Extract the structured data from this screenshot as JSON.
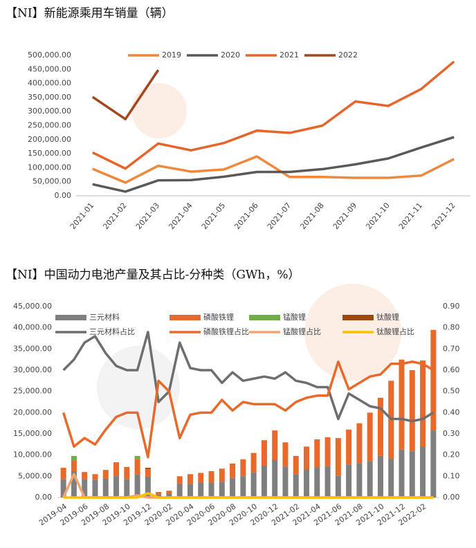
{
  "chart_data": [
    {
      "type": "line",
      "title": "【NI】新能源乘用车销量（辆）",
      "categories": [
        "2021-01",
        "2021-02",
        "2021-03",
        "2021-04",
        "2021-05",
        "2021-06",
        "2021-07",
        "2021-08",
        "2021-09",
        "2021-10",
        "2021-11",
        "2021-12"
      ],
      "series": [
        {
          "name": "2019",
          "color": "#f0883c",
          "values": [
            96000,
            47000,
            107000,
            86000,
            94000,
            140000,
            67000,
            67000,
            64000,
            64000,
            72000,
            131000
          ]
        },
        {
          "name": "2020",
          "color": "#595959",
          "values": [
            41000,
            15000,
            55000,
            56000,
            68000,
            85000,
            85000,
            95000,
            112000,
            133000,
            172000,
            209000
          ]
        },
        {
          "name": "2021",
          "color": "#e5652a",
          "values": [
            154000,
            97000,
            186000,
            162000,
            188000,
            232000,
            224000,
            250000,
            336000,
            320000,
            380000,
            478000
          ]
        },
        {
          "name": "2022",
          "color": "#a2461d",
          "values": [
            352000,
            273000,
            448000,
            null,
            null,
            null,
            null,
            null,
            null,
            null,
            null,
            null
          ]
        }
      ],
      "ylim": [
        0,
        500000
      ],
      "yticks": [
        {
          "value": 0,
          "label": "0.00"
        },
        {
          "value": 50000,
          "label": "50,000.00"
        },
        {
          "value": 100000,
          "label": "100,000.00"
        },
        {
          "value": 150000,
          "label": "150,000.00"
        },
        {
          "value": 200000,
          "label": "200,000.00"
        },
        {
          "value": 250000,
          "label": "250,000.00"
        },
        {
          "value": 300000,
          "label": "300,000.00"
        },
        {
          "value": 350000,
          "label": "350,000.00"
        },
        {
          "value": 400000,
          "label": "400,000.00"
        },
        {
          "value": 450000,
          "label": "450,000.00"
        },
        {
          "value": 500000,
          "label": "500,000.00"
        }
      ],
      "legend": "top"
    },
    {
      "type": "combo",
      "title": "【NI】中国动力电池产量及其占比-分种类（GWh，%）",
      "categories": [
        "2019-04",
        null,
        "2019-06",
        null,
        "2019-08",
        null,
        "2019-10",
        null,
        "2019-12",
        null,
        "2020-02",
        null,
        "2020-04",
        null,
        "2020-06",
        null,
        "2020-08",
        null,
        "2020-10",
        null,
        "2020-12",
        null,
        "2021-02",
        null,
        "2021-04",
        null,
        "2021-06",
        null,
        "2021-08",
        null,
        "2021-10",
        null,
        "2021-12",
        null,
        "2022-02",
        null
      ],
      "stacked": true,
      "series": [
        {
          "name": "三元材料",
          "type": "bar",
          "color": "#7f7f7f",
          "values": [
            4300,
            6200,
            4300,
            4200,
            4400,
            5000,
            4300,
            5400,
            4900,
            700,
            900,
            3300,
            3200,
            3500,
            3500,
            3700,
            4600,
            5000,
            5900,
            7500,
            8800,
            7300,
            5500,
            6600,
            7100,
            7400,
            5100,
            7800,
            8100,
            8600,
            9800,
            9200,
            11300,
            10900,
            11900,
            15800
          ]
        },
        {
          "name": "磷酸铁锂",
          "type": "bar",
          "color": "#e8692a",
          "values": [
            2700,
            2500,
            1700,
            1300,
            2100,
            3300,
            2900,
            3600,
            1800,
            600,
            700,
            1700,
            2300,
            2300,
            2700,
            3100,
            3400,
            4000,
            4600,
            6000,
            7000,
            5700,
            4300,
            5400,
            6600,
            6800,
            8900,
            8200,
            9400,
            11400,
            13700,
            18300,
            21200,
            19100,
            20400,
            23700
          ]
        },
        {
          "name": "锰酸锂",
          "type": "bar",
          "color": "#70ad47",
          "values": [
            0,
            1100,
            0,
            0,
            0,
            0,
            0,
            800,
            0,
            0,
            0,
            0,
            0,
            0,
            0,
            0,
            0,
            0,
            0,
            0,
            0,
            0,
            0,
            0,
            0,
            0,
            0,
            0,
            0,
            0,
            0,
            0,
            0,
            0,
            0,
            0
          ]
        },
        {
          "name": "钛酸锂",
          "type": "bar",
          "color": "#9e480e",
          "values": [
            0,
            0,
            0,
            0,
            0,
            0,
            0,
            0,
            300,
            0,
            0,
            0,
            0,
            0,
            0,
            0,
            0,
            0,
            0,
            0,
            0,
            0,
            0,
            0,
            0,
            0,
            0,
            0,
            0,
            0,
            0,
            0,
            0,
            0,
            0,
            0
          ]
        },
        {
          "name": "三元材料占比",
          "type": "line",
          "axis": "y2",
          "color": "#6e6e6e",
          "values": [
            0.6,
            0.65,
            0.73,
            0.76,
            0.68,
            0.62,
            0.6,
            0.6,
            0.78,
            0.45,
            0.5,
            0.73,
            0.61,
            0.6,
            0.6,
            0.54,
            0.59,
            0.55,
            0.56,
            0.57,
            0.56,
            0.59,
            0.55,
            0.54,
            0.52,
            0.52,
            0.37,
            0.49,
            0.46,
            0.43,
            0.42,
            0.37,
            0.37,
            0.36,
            0.37,
            0.4
          ]
        },
        {
          "name": "磷酸铁锂占比",
          "type": "line",
          "axis": "y2",
          "color": "#e8692a",
          "values": [
            0.4,
            0.24,
            0.28,
            0.25,
            0.32,
            0.38,
            0.4,
            0.4,
            0.19,
            0.55,
            0.5,
            0.28,
            0.39,
            0.4,
            0.4,
            0.46,
            0.41,
            0.45,
            0.44,
            0.44,
            0.44,
            0.41,
            0.45,
            0.47,
            0.48,
            0.48,
            0.64,
            0.51,
            0.54,
            0.57,
            0.58,
            0.63,
            0.63,
            0.64,
            0.63,
            0.6
          ]
        },
        {
          "name": "锰酸锂占比",
          "type": "line",
          "axis": "y2",
          "color": "#f4a46c",
          "values": [
            0.0,
            0.11,
            0.0,
            0.0,
            0.0,
            0.0,
            0.0,
            0.01,
            0.0,
            0.0,
            0.0,
            0.0,
            0.0,
            0.0,
            0.0,
            0.0,
            0.0,
            0.0,
            0.0,
            0.0,
            0.0,
            0.0,
            0.0,
            0.0,
            0.0,
            0.0,
            0.0,
            0.0,
            0.0,
            0.0,
            0.0,
            0.0,
            0.0,
            0.0,
            0.0,
            0.0
          ]
        },
        {
          "name": "钛酸锂占比",
          "type": "line",
          "axis": "y2",
          "color": "#ffc000",
          "values": [
            0.0,
            0.0,
            0.0,
            0.0,
            0.0,
            0.0,
            0.0,
            0.0,
            0.02,
            0.0,
            0.0,
            0.0,
            0.0,
            0.0,
            0.0,
            0.0,
            0.0,
            0.0,
            0.0,
            0.0,
            0.0,
            0.0,
            0.0,
            0.0,
            0.0,
            0.0,
            0.0,
            0.0,
            0.0,
            0.0,
            0.0,
            0.0,
            0.0,
            0.0,
            0.0,
            0.0
          ]
        }
      ],
      "ylim": [
        0,
        45000
      ],
      "yticks": [
        {
          "value": 0,
          "label": "0.00"
        },
        {
          "value": 5000,
          "label": "5,000.00"
        },
        {
          "value": 10000,
          "label": "10,000.00"
        },
        {
          "value": 15000,
          "label": "15,000.00"
        },
        {
          "value": 20000,
          "label": "20,000.00"
        },
        {
          "value": 25000,
          "label": "25,000.00"
        },
        {
          "value": 30000,
          "label": "30,000.00"
        },
        {
          "value": 35000,
          "label": "35,000.00"
        },
        {
          "value": 40000,
          "label": "40,000.00"
        },
        {
          "value": 45000,
          "label": "45,000.00"
        }
      ],
      "y2lim": [
        0,
        0.9
      ],
      "y2ticks": [
        {
          "value": 0,
          "label": "0.00"
        },
        {
          "value": 0.1,
          "label": "0.10"
        },
        {
          "value": 0.2,
          "label": "0.20"
        },
        {
          "value": 0.3,
          "label": "0.30"
        },
        {
          "value": 0.4,
          "label": "0.40"
        },
        {
          "value": 0.5,
          "label": "0.50"
        },
        {
          "value": 0.6,
          "label": "0.60"
        },
        {
          "value": 0.7,
          "label": "0.70"
        },
        {
          "value": 0.8,
          "label": "0.80"
        },
        {
          "value": 0.9,
          "label": "0.90"
        }
      ],
      "legend": "top"
    }
  ]
}
